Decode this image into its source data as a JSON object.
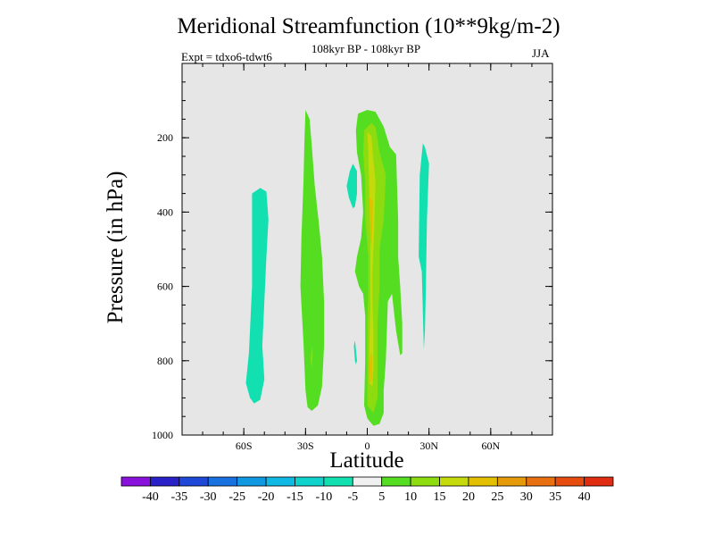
{
  "chart_data": {
    "type": "contour",
    "title": "Meridional Streamfunction (10**9kg/m-2)",
    "subtitle": "108kyr BP - 108kyr BP",
    "left_annotation": "Expt = tdxo6-tdwt6",
    "right_annotation": "JJA",
    "xlabel": "Latitude",
    "ylabel": "Pressure (in hPa)",
    "xlim": [
      -90,
      90
    ],
    "ylim": [
      1000,
      0
    ],
    "x_ticks": [
      {
        "value": -60,
        "label": "60S"
      },
      {
        "value": -30,
        "label": "30S"
      },
      {
        "value": 0,
        "label": "0"
      },
      {
        "value": 30,
        "label": "30N"
      },
      {
        "value": 60,
        "label": "60N"
      }
    ],
    "y_ticks": [
      {
        "value": 200,
        "label": "200"
      },
      {
        "value": 400,
        "label": "400"
      },
      {
        "value": 600,
        "label": "600"
      },
      {
        "value": 800,
        "label": "800"
      },
      {
        "value": 1000,
        "label": "1000"
      }
    ],
    "colorbar": {
      "labels": [
        "-40",
        "-35",
        "-30",
        "-25",
        "-20",
        "-15",
        "-10",
        "-5",
        "5",
        "10",
        "15",
        "20",
        "25",
        "30",
        "35",
        "40"
      ],
      "colors": [
        "#8a10dc",
        "#2a20c8",
        "#1f47d8",
        "#1772e0",
        "#1098e0",
        "#10b8e4",
        "#10d2cc",
        "#12e0b0",
        "#f0f0f0",
        "#55dd22",
        "#8cdc10",
        "#c4da0a",
        "#e2c000",
        "#e59a0a",
        "#e87010",
        "#e64c0e",
        "#e02c10"
      ]
    },
    "contours": [
      {
        "name": "neg-60S",
        "level": "-10 to -5",
        "color": "#12e0b0",
        "points": [
          [
            -56,
            350
          ],
          [
            -52,
            335
          ],
          [
            -49,
            345
          ],
          [
            -48,
            420
          ],
          [
            -49,
            520
          ],
          [
            -50,
            640
          ],
          [
            -51,
            760
          ],
          [
            -50,
            850
          ],
          [
            -52,
            905
          ],
          [
            -55,
            915
          ],
          [
            -57,
            900
          ],
          [
            -59,
            860
          ],
          [
            -57.5,
            780
          ],
          [
            -56,
            600
          ],
          [
            -56,
            450
          ]
        ]
      },
      {
        "name": "neg-30N",
        "level": "-10 to -5",
        "color": "#12e0b0",
        "points": [
          [
            27,
            215
          ],
          [
            28,
            225
          ],
          [
            30,
            270
          ],
          [
            29,
            420
          ],
          [
            28.5,
            600
          ],
          [
            28,
            720
          ],
          [
            27.5,
            770
          ],
          [
            26.5,
            560
          ],
          [
            25,
            520
          ],
          [
            25.5,
            300
          ]
        ]
      },
      {
        "name": "neg-blob-upper",
        "level": "-10 to -5",
        "color": "#12e0b0",
        "points": [
          [
            -7,
            270
          ],
          [
            -5,
            290
          ],
          [
            -5,
            350
          ],
          [
            -6,
            385
          ],
          [
            -7,
            390
          ],
          [
            -9,
            360
          ],
          [
            -10,
            330
          ],
          [
            -8.5,
            290
          ]
        ]
      },
      {
        "name": "neg-blob-lower",
        "level": "-10 to -5",
        "color": "#12e0b0",
        "points": [
          [
            -6,
            745
          ],
          [
            -5.5,
            770
          ],
          [
            -5,
            800
          ],
          [
            -5.5,
            810
          ],
          [
            -6,
            800
          ],
          [
            -6.5,
            760
          ]
        ]
      },
      {
        "name": "pos-30S",
        "level": "5 to 10",
        "color": "#55dd22",
        "points": [
          [
            -30,
            125
          ],
          [
            -28,
            150
          ],
          [
            -27,
            220
          ],
          [
            -25.5,
            330
          ],
          [
            -23.5,
            430
          ],
          [
            -22,
            520
          ],
          [
            -21,
            640
          ],
          [
            -21,
            760
          ],
          [
            -22,
            870
          ],
          [
            -24,
            920
          ],
          [
            -27,
            935
          ],
          [
            -29,
            925
          ],
          [
            -30,
            880
          ],
          [
            -31,
            750
          ],
          [
            -32.5,
            600
          ],
          [
            -32,
            470
          ],
          [
            -31,
            320
          ],
          [
            -30.5,
            200
          ]
        ]
      },
      {
        "name": "pos-equatorial",
        "level": "5 to 10",
        "color": "#55dd22",
        "points": [
          [
            -4.5,
            135
          ],
          [
            0,
            125
          ],
          [
            4,
            130
          ],
          [
            8,
            170
          ],
          [
            11,
            225
          ],
          [
            14,
            245
          ],
          [
            15,
            420
          ],
          [
            15,
            520
          ],
          [
            16,
            600
          ],
          [
            17,
            700
          ],
          [
            17,
            780
          ],
          [
            16,
            785
          ],
          [
            14,
            720
          ],
          [
            12,
            620
          ],
          [
            10,
            640
          ],
          [
            9,
            800
          ],
          [
            8,
            880
          ],
          [
            8,
            940
          ],
          [
            6,
            970
          ],
          [
            3,
            975
          ],
          [
            0,
            955
          ],
          [
            -1.5,
            920
          ],
          [
            -1,
            800
          ],
          [
            -1,
            680
          ],
          [
            -2,
            620
          ],
          [
            -4,
            600
          ],
          [
            -6,
            560
          ],
          [
            -5,
            520
          ],
          [
            -3,
            470
          ],
          [
            -2,
            400
          ],
          [
            -3,
            300
          ],
          [
            -5,
            240
          ],
          [
            -5.5,
            180
          ]
        ]
      },
      {
        "name": "pos-equatorial-10",
        "level": "10 to 15",
        "color": "#8cdc10",
        "points": [
          [
            -1.5,
            180
          ],
          [
            2,
            160
          ],
          [
            4,
            170
          ],
          [
            6,
            240
          ],
          [
            9,
            300
          ],
          [
            8,
            420
          ],
          [
            6,
            500
          ],
          [
            6,
            600
          ],
          [
            5,
            700
          ],
          [
            5,
            800
          ],
          [
            5,
            900
          ],
          [
            3,
            940
          ],
          [
            0,
            920
          ],
          [
            0,
            800
          ],
          [
            0,
            700
          ],
          [
            0.5,
            600
          ],
          [
            0.5,
            520
          ],
          [
            -1,
            420
          ],
          [
            -1,
            320
          ],
          [
            -2,
            240
          ]
        ]
      },
      {
        "name": "pos-equatorial-15",
        "level": "15 to 20",
        "color": "#c4da0a",
        "points": [
          [
            0,
            185
          ],
          [
            2,
            195
          ],
          [
            3,
            260
          ],
          [
            4,
            320
          ],
          [
            3.5,
            420
          ],
          [
            3,
            500
          ],
          [
            2.5,
            560
          ],
          [
            2.5,
            650
          ],
          [
            3,
            720
          ],
          [
            3,
            820
          ],
          [
            2.5,
            870
          ],
          [
            1,
            860
          ],
          [
            1,
            760
          ],
          [
            1.5,
            660
          ],
          [
            1.5,
            560
          ],
          [
            1.5,
            470
          ],
          [
            1,
            360
          ],
          [
            0.5,
            240
          ]
        ]
      },
      {
        "name": "pos-equatorial-20",
        "level": "20 to 25",
        "color": "#e2c000",
        "points": [
          [
            1,
            360
          ],
          [
            2.5,
            370
          ],
          [
            2.5,
            430
          ],
          [
            2,
            490
          ],
          [
            1.5,
            480
          ],
          [
            1.5,
            410
          ]
        ]
      },
      {
        "name": "pos-equatorial-20b",
        "level": "20 to 25",
        "color": "#e2c000",
        "points": [
          [
            1.5,
            780
          ],
          [
            2.5,
            790
          ],
          [
            2.5,
            850
          ],
          [
            1.5,
            860
          ],
          [
            1,
            820
          ]
        ]
      },
      {
        "name": "pos-30S-inner",
        "level": "10 to 15",
        "color": "#8cdc10",
        "points": [
          [
            -27,
            760
          ],
          [
            -26.5,
            780
          ],
          [
            -27,
            820
          ],
          [
            -27.5,
            800
          ]
        ]
      }
    ]
  }
}
